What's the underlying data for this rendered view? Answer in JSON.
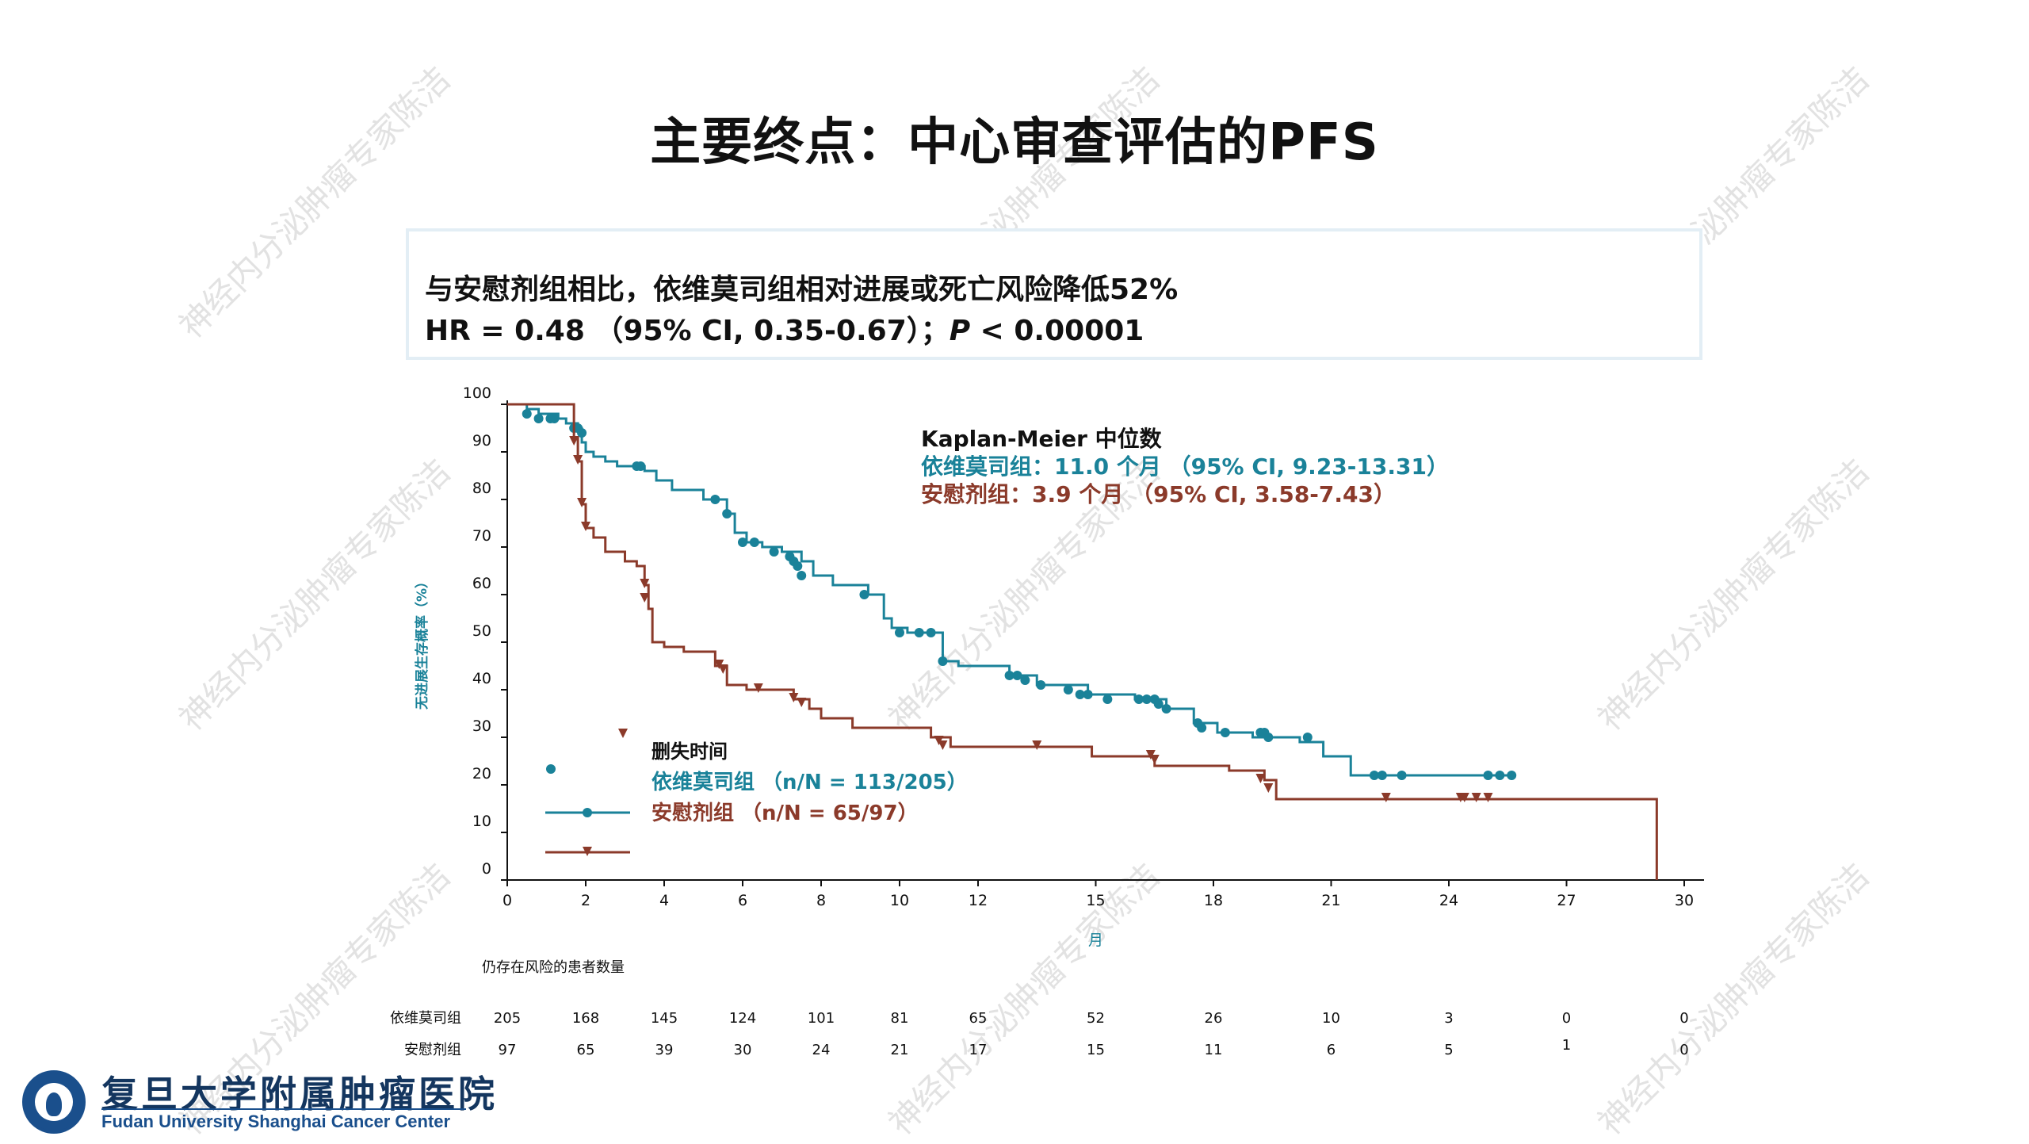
{
  "title": "主要终点：中心审查评估的PFS",
  "hr_box": {
    "line1": "与安慰剂组相比，依维莫司组相对进展或死亡风险降低52%",
    "line2_prefix": "HR = 0.48 （95% CI, 0.35-0.67）；",
    "line2_p": "P",
    "line2_suffix": " < 0.00001"
  },
  "chart_data": {
    "type": "line",
    "subtype": "kaplan-meier",
    "xlabel": "月",
    "ylabel": "无进展生存概率（%）",
    "xlim": [
      0,
      30
    ],
    "ylim": [
      0,
      100
    ],
    "xticks": [
      0,
      2,
      4,
      6,
      8,
      10,
      12,
      15,
      18,
      21,
      24,
      27,
      30
    ],
    "yticks": [
      0,
      10,
      20,
      30,
      40,
      50,
      60,
      70,
      80,
      90,
      100
    ],
    "median_title": "Kaplan-Meier 中位数",
    "median_lines": [
      "依维莫司组：11.0 个月 （95% CI, 9.23-13.31）",
      "安慰剂组：3.9 个月 （95% CI, 3.58-7.43）"
    ],
    "legend_title": "删失时间",
    "legend_placement": "bottom-left",
    "series": [
      {
        "name": "依维莫司组 （n/N = 113/205）",
        "color": "#1a8299",
        "marker": "circle",
        "steps": [
          [
            0,
            100
          ],
          [
            0.5,
            99
          ],
          [
            0.8,
            98
          ],
          [
            1.3,
            97
          ],
          [
            1.5,
            96
          ],
          [
            1.8,
            95
          ],
          [
            1.9,
            92
          ],
          [
            2.0,
            90
          ],
          [
            2.2,
            89
          ],
          [
            2.5,
            88
          ],
          [
            2.8,
            87
          ],
          [
            3.5,
            86
          ],
          [
            3.8,
            84
          ],
          [
            4.2,
            82
          ],
          [
            5.0,
            80
          ],
          [
            5.6,
            77
          ],
          [
            5.8,
            73
          ],
          [
            6.1,
            71
          ],
          [
            6.5,
            70
          ],
          [
            7.0,
            69
          ],
          [
            7.5,
            67
          ],
          [
            7.8,
            64
          ],
          [
            8.3,
            62
          ],
          [
            9.2,
            60
          ],
          [
            9.6,
            55
          ],
          [
            9.8,
            53
          ],
          [
            10.2,
            52
          ],
          [
            11.0,
            52
          ],
          [
            11.1,
            46
          ],
          [
            11.5,
            45
          ],
          [
            12.8,
            43
          ],
          [
            13.5,
            41
          ],
          [
            14.8,
            39
          ],
          [
            16.0,
            38
          ],
          [
            16.8,
            36
          ],
          [
            17.5,
            33
          ],
          [
            18.1,
            31
          ],
          [
            19.0,
            30
          ],
          [
            20.2,
            29
          ],
          [
            20.8,
            26
          ],
          [
            21.5,
            22
          ],
          [
            25.6,
            22
          ]
        ],
        "censors": [
          [
            0.5,
            98
          ],
          [
            0.8,
            97
          ],
          [
            1.1,
            97
          ],
          [
            1.2,
            97
          ],
          [
            1.7,
            95
          ],
          [
            1.8,
            95
          ],
          [
            1.9,
            94
          ],
          [
            3.3,
            87
          ],
          [
            3.4,
            87
          ],
          [
            5.3,
            80
          ],
          [
            5.6,
            77
          ],
          [
            6.0,
            71
          ],
          [
            6.3,
            71
          ],
          [
            6.8,
            69
          ],
          [
            7.2,
            68
          ],
          [
            7.3,
            67
          ],
          [
            7.4,
            66
          ],
          [
            7.5,
            64
          ],
          [
            9.1,
            60
          ],
          [
            10.0,
            52
          ],
          [
            10.5,
            52
          ],
          [
            10.8,
            52
          ],
          [
            11.1,
            46
          ],
          [
            12.8,
            43
          ],
          [
            13.0,
            43
          ],
          [
            13.2,
            42
          ],
          [
            13.6,
            41
          ],
          [
            14.3,
            40
          ],
          [
            14.6,
            39
          ],
          [
            14.8,
            39
          ],
          [
            15.3,
            38
          ],
          [
            16.1,
            38
          ],
          [
            16.3,
            38
          ],
          [
            16.5,
            38
          ],
          [
            16.6,
            37
          ],
          [
            16.8,
            36
          ],
          [
            17.6,
            33
          ],
          [
            17.7,
            32
          ],
          [
            18.3,
            31
          ],
          [
            19.2,
            31
          ],
          [
            19.3,
            31
          ],
          [
            19.4,
            30
          ],
          [
            20.4,
            30
          ],
          [
            22.1,
            22
          ],
          [
            22.3,
            22
          ],
          [
            22.8,
            22
          ],
          [
            25.0,
            22
          ],
          [
            25.3,
            22
          ],
          [
            25.6,
            22
          ]
        ]
      },
      {
        "name": "安慰剂组 （n/N = 65/97）",
        "color": "#8b3a2a",
        "marker": "triangle-down",
        "steps": [
          [
            0,
            100
          ],
          [
            1.7,
            93
          ],
          [
            1.8,
            88
          ],
          [
            1.9,
            79
          ],
          [
            2.0,
            74
          ],
          [
            2.2,
            72
          ],
          [
            2.5,
            69
          ],
          [
            3.0,
            67
          ],
          [
            3.3,
            66
          ],
          [
            3.5,
            62
          ],
          [
            3.6,
            57
          ],
          [
            3.7,
            50
          ],
          [
            4.0,
            49
          ],
          [
            4.5,
            48
          ],
          [
            5.3,
            45
          ],
          [
            5.6,
            41
          ],
          [
            6.1,
            40
          ],
          [
            7.3,
            38
          ],
          [
            7.7,
            36
          ],
          [
            8.0,
            34
          ],
          [
            8.8,
            32
          ],
          [
            10.8,
            30
          ],
          [
            11.3,
            28
          ],
          [
            14.9,
            26
          ],
          [
            16.5,
            24
          ],
          [
            18.4,
            23
          ],
          [
            19.3,
            21
          ],
          [
            19.6,
            17
          ],
          [
            29.3,
            17
          ],
          [
            29.3,
            0
          ]
        ],
        "censors": [
          [
            1.7,
            92
          ],
          [
            1.8,
            88
          ],
          [
            1.9,
            79
          ],
          [
            2.0,
            74
          ],
          [
            3.5,
            62
          ],
          [
            3.5,
            59
          ],
          [
            5.4,
            45
          ],
          [
            5.5,
            44
          ],
          [
            6.4,
            40
          ],
          [
            7.3,
            38
          ],
          [
            7.5,
            37
          ],
          [
            11.0,
            29
          ],
          [
            11.1,
            28
          ],
          [
            13.5,
            28
          ],
          [
            16.4,
            26
          ],
          [
            16.5,
            25
          ],
          [
            19.2,
            21
          ],
          [
            19.4,
            19
          ],
          [
            22.4,
            17
          ],
          [
            24.3,
            17
          ],
          [
            24.4,
            17
          ],
          [
            24.7,
            17
          ],
          [
            25.0,
            17
          ]
        ]
      }
    ],
    "risk_table": {
      "title": "仍存在风险的患者数量",
      "timepoints": [
        0,
        2,
        4,
        6,
        8,
        10,
        12,
        15,
        18,
        21,
        24,
        27,
        30
      ],
      "rows": [
        {
          "label": "依维莫司组",
          "values": [
            "205",
            "168",
            "145",
            "124",
            "101",
            "81",
            "65",
            "52",
            "26",
            "10",
            "3",
            "0",
            "0"
          ]
        },
        {
          "label": "安慰剂组",
          "values": [
            "97",
            "65",
            "39",
            "30",
            "24",
            "21",
            "17",
            "15",
            "11",
            "6",
            "5",
            "1",
            "0"
          ]
        }
      ]
    }
  },
  "logo": {
    "cn": "复旦大学附属肿瘤医院",
    "en": "Fudan University Shanghai Cancer Center"
  },
  "watermark": "神经内分泌肿瘤专家陈洁"
}
